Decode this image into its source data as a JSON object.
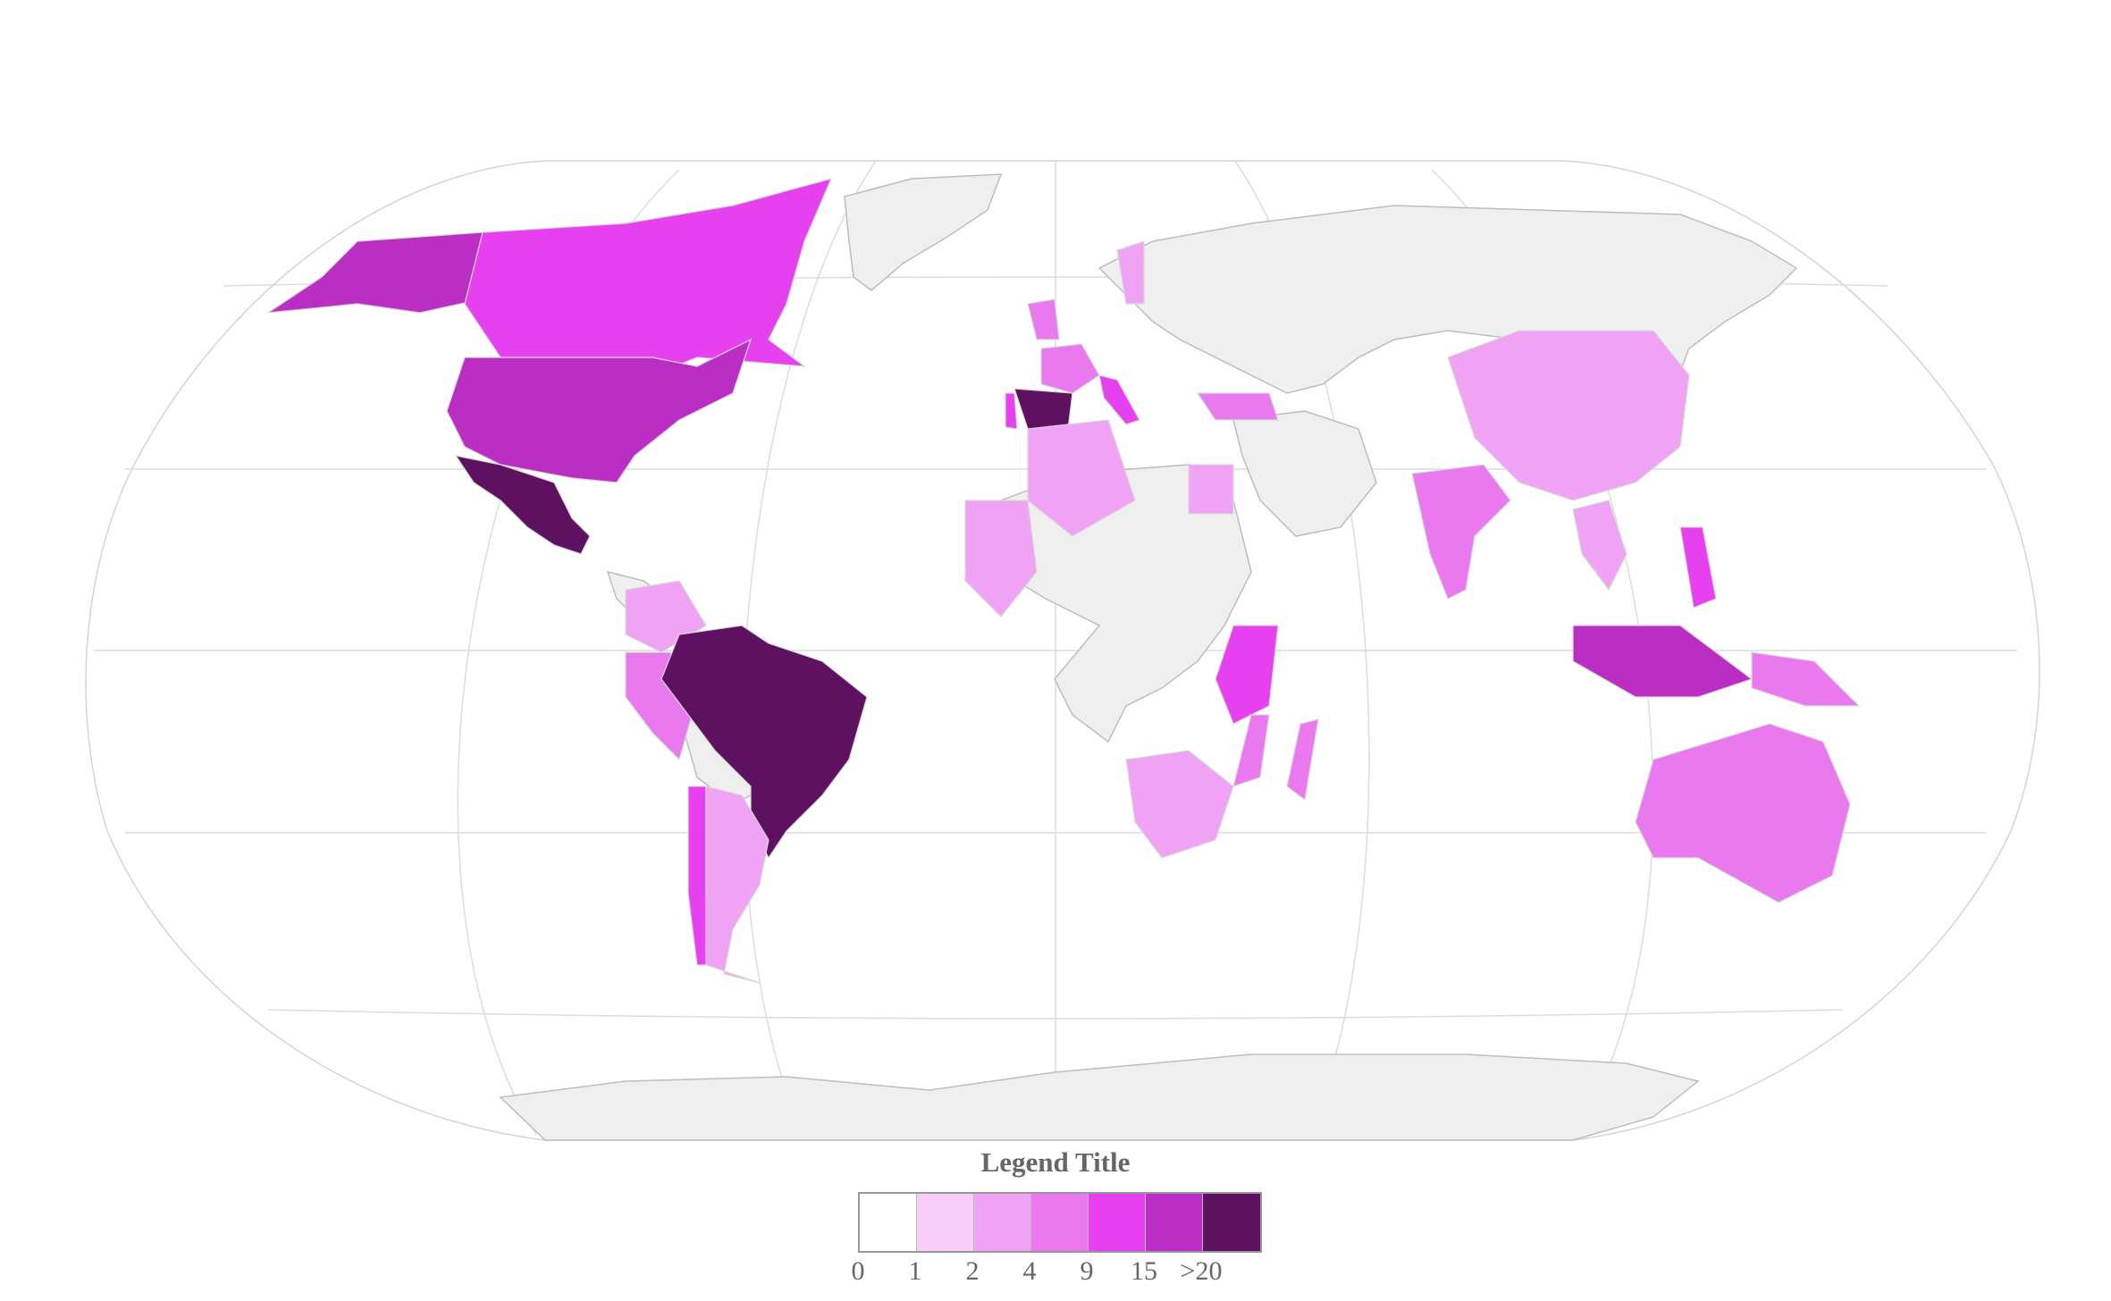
{
  "legend": {
    "title": "Legend Title",
    "bins": [
      {
        "label": "0",
        "color": "#ffffff"
      },
      {
        "label": "1",
        "color": "#f6ccf8"
      },
      {
        "label": "2",
        "color": "#f0a2f4"
      },
      {
        "label": "4",
        "color": "#ea78ef"
      },
      {
        "label": "9",
        "color": "#e640f0"
      },
      {
        "label": "15",
        "color": "#bb2ec4"
      },
      {
        "label": ">20",
        "color": "#5e1160"
      }
    ]
  },
  "map_data": {
    "type": "choropleth",
    "projection": "robinson",
    "nodata_color": "#efefef",
    "regions": [
      {
        "name": "Canada",
        "bin": 4
      },
      {
        "name": "Alaska",
        "bin": 5
      },
      {
        "name": "United States",
        "bin": 5
      },
      {
        "name": "Mexico",
        "bin": 6
      },
      {
        "name": "Brazil",
        "bin": 6
      },
      {
        "name": "Spain",
        "bin": 6
      },
      {
        "name": "Portugal",
        "bin": 4
      },
      {
        "name": "France",
        "bin": 3
      },
      {
        "name": "Italy",
        "bin": 4
      },
      {
        "name": "Turkey",
        "bin": 3
      },
      {
        "name": "Egypt",
        "bin": 2
      },
      {
        "name": "Algeria",
        "bin": 2
      },
      {
        "name": "West Africa",
        "bin": 2
      },
      {
        "name": "Kenya and Tanzania",
        "bin": 4
      },
      {
        "name": "Mozambique",
        "bin": 3
      },
      {
        "name": "Madagascar",
        "bin": 3
      },
      {
        "name": "Southern Africa",
        "bin": 2
      },
      {
        "name": "Peru",
        "bin": 3
      },
      {
        "name": "Colombia",
        "bin": 2
      },
      {
        "name": "Argentina",
        "bin": 2
      },
      {
        "name": "Chile",
        "bin": 4
      },
      {
        "name": "India",
        "bin": 3
      },
      {
        "name": "China",
        "bin": 2
      },
      {
        "name": "Southeast Asia",
        "bin": 2
      },
      {
        "name": "Philippines",
        "bin": 4
      },
      {
        "name": "Indonesia",
        "bin": 5
      },
      {
        "name": "Papua New Guinea",
        "bin": 3
      },
      {
        "name": "Australia",
        "bin": 3
      },
      {
        "name": "Sweden",
        "bin": 2
      },
      {
        "name": "United Kingdom",
        "bin": 3
      },
      {
        "name": "Greenland",
        "bin": 0
      },
      {
        "name": "Russia",
        "bin": 0
      },
      {
        "name": "Antarctica",
        "bin": 0
      }
    ]
  }
}
